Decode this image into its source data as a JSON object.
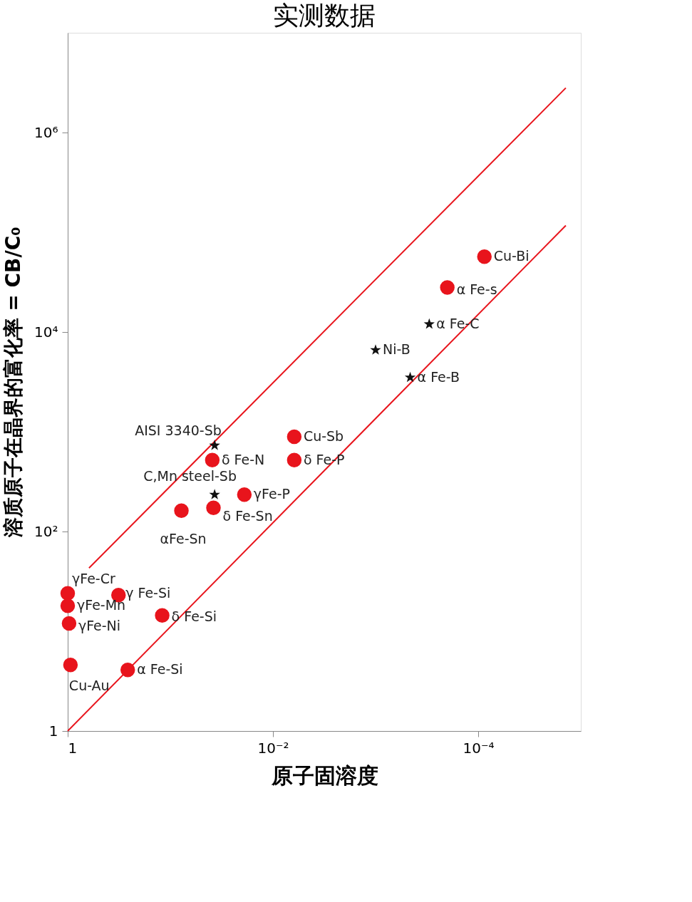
{
  "chart_data": {
    "type": "scatter",
    "title": "实测数据",
    "xlabel": "原子固溶度",
    "ylabel": "溶质原子在晶界的富化率 = CB/C₀",
    "log": "xy",
    "grid": false,
    "xlim": [
      1,
      1e-05
    ],
    "ylim": [
      1,
      10000000.0
    ],
    "xticks": [
      {
        "value": 1,
        "label": "1"
      },
      {
        "value": 0.01,
        "label": "10⁻²"
      },
      {
        "value": 0.0001,
        "label": "10⁻⁴"
      }
    ],
    "yticks": [
      {
        "value": 1,
        "label": "1"
      },
      {
        "value": 100,
        "label": "10²"
      },
      {
        "value": 10000,
        "label": "10⁴"
      },
      {
        "value": 1000000,
        "label": "10⁶"
      }
    ],
    "series": [
      {
        "type": "line",
        "color": "#e8141c",
        "line_style": "solid",
        "marker": "none",
        "x": [
          0.62,
          1.4e-05
        ],
        "values": [
          43,
          2800000
        ]
      },
      {
        "type": "line",
        "color": "#e8141c",
        "line_style": "solid",
        "marker": "none",
        "x": [
          1,
          1.4e-05
        ],
        "values": [
          1,
          117000
        ]
      },
      {
        "color": "#e8141c",
        "marker": "circle",
        "x": [
          8.7e-05,
          0.0002,
          0.0062,
          0.0062,
          0.039,
          0.019,
          0.038,
          0.078,
          1.0,
          0.32,
          1.0,
          0.12,
          0.97,
          0.94,
          0.26
        ],
        "values": [
          57000,
          28000,
          890,
          520,
          520,
          234,
          173,
          162,
          24,
          23,
          18,
          14.4,
          12,
          4.6,
          4.1
        ]
      },
      {
        "color": "#111111",
        "marker": "star",
        "x": [
          0.0003,
          0.001,
          0.00046,
          0.037,
          0.037
        ],
        "values": [
          12000,
          6600,
          3500,
          730,
          234
        ]
      }
    ],
    "annotations": [
      {
        "text": "Cu-Bi",
        "x": 8.7e-05,
        "y": 57000
      },
      {
        "text": "α Fe-s",
        "x": 0.0002,
        "y": 28000
      },
      {
        "text": "Cu-Sb",
        "x": 0.0062,
        "y": 890
      },
      {
        "text": "δ Fe-P",
        "x": 0.0062,
        "y": 520
      },
      {
        "text": "δ Fe-N",
        "x": 0.039,
        "y": 520
      },
      {
        "text": "γFe-P",
        "x": 0.019,
        "y": 234
      },
      {
        "text": "δ Fe-Sn",
        "x": 0.038,
        "y": 173
      },
      {
        "text": "αFe-Sn",
        "x": 0.078,
        "y": 162
      },
      {
        "text": "γFe-Cr",
        "x": 1.0,
        "y": 24
      },
      {
        "text": "γ Fe-Si",
        "x": 0.32,
        "y": 23
      },
      {
        "text": "γFe-Mn",
        "x": 1.0,
        "y": 18
      },
      {
        "text": "δ Fe-Si",
        "x": 0.12,
        "y": 14.4
      },
      {
        "text": "γFe-Ni",
        "x": 0.97,
        "y": 12
      },
      {
        "text": "Cu-Au",
        "x": 0.94,
        "y": 4.6
      },
      {
        "text": "α Fe-Si",
        "x": 0.26,
        "y": 4.1
      },
      {
        "text": "α Fe-C",
        "x": 0.0003,
        "y": 12000
      },
      {
        "text": "Ni-B",
        "x": 0.001,
        "y": 6600
      },
      {
        "text": "α Fe-B",
        "x": 0.00046,
        "y": 3500
      },
      {
        "text": "AISI 3340-Sb",
        "x": 0.037,
        "y": 730
      },
      {
        "text": "C,Mn steel-Sb",
        "x": 0.037,
        "y": 234
      }
    ]
  }
}
